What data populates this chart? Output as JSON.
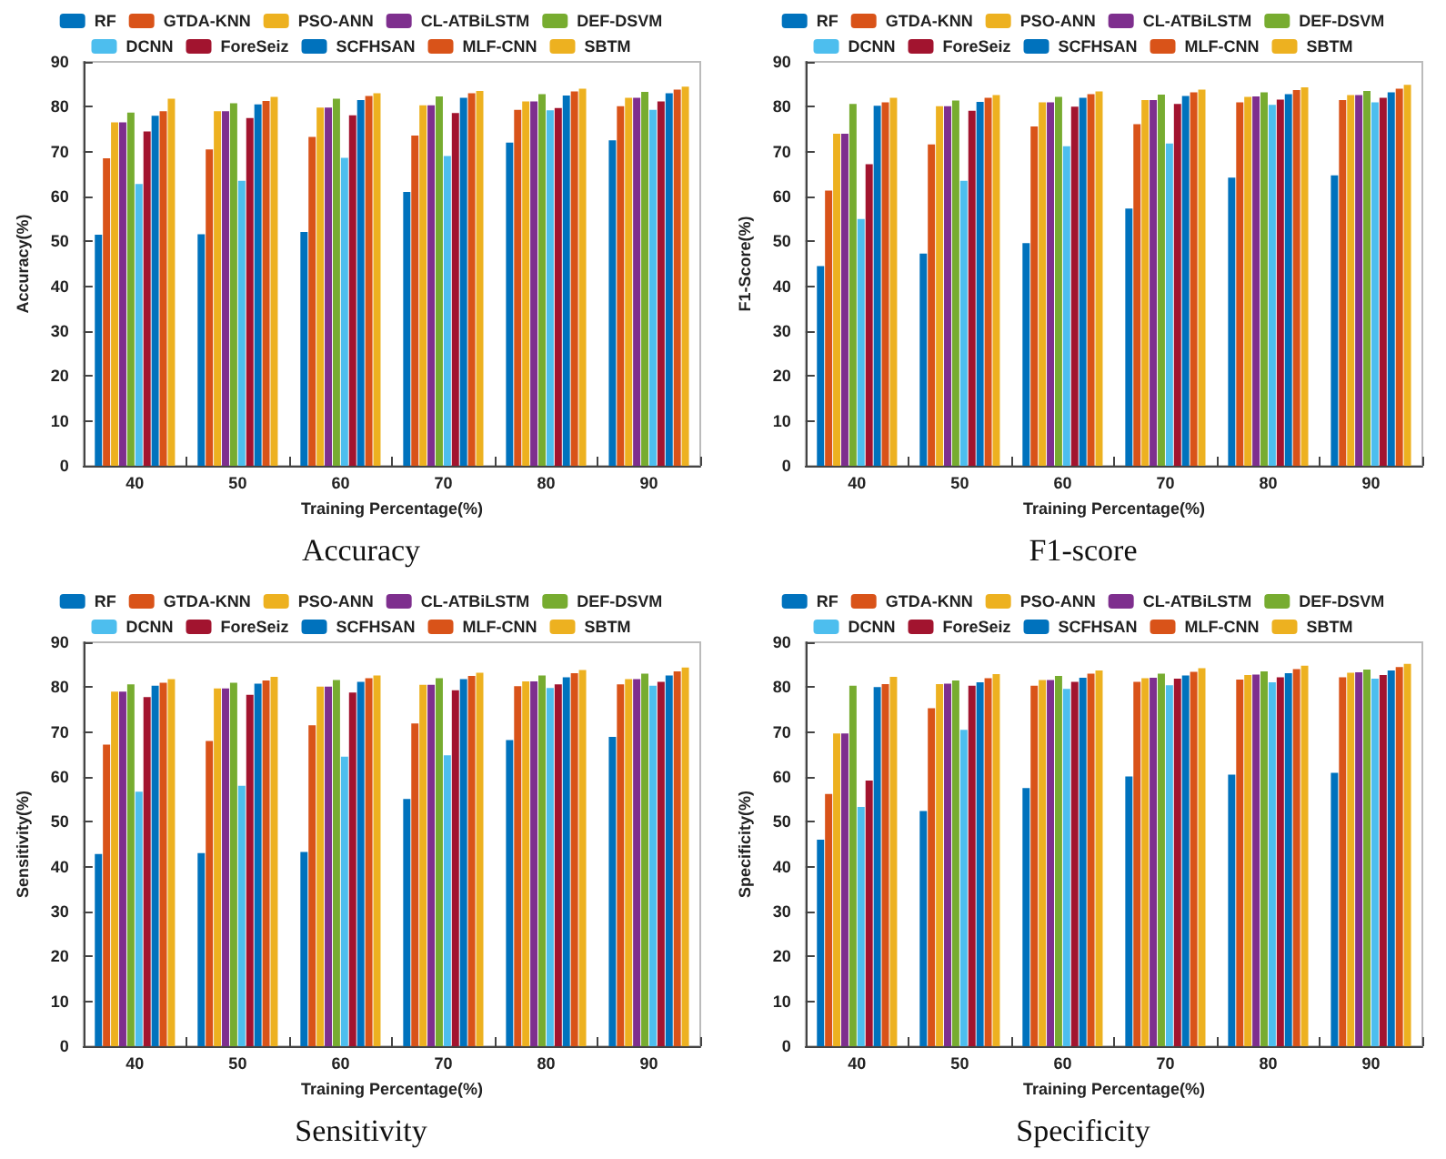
{
  "chart_data": [
    {
      "type": "bar",
      "title": "Accuracy",
      "xlabel": "Training Percentage(%)",
      "ylabel": "Accuracy(%)",
      "categories": [
        "40",
        "50",
        "60",
        "70",
        "80",
        "90"
      ],
      "ylim": [
        0,
        90
      ],
      "yticks": [
        0,
        10,
        20,
        30,
        40,
        50,
        60,
        70,
        80,
        90
      ],
      "legend": "top",
      "series": [
        {
          "name": "RF",
          "color": "#0072bd",
          "values": [
            51.5,
            51.6,
            52.1,
            61,
            72,
            72.5
          ]
        },
        {
          "name": "GTDA-KNN",
          "color": "#d95319",
          "values": [
            68.5,
            70.5,
            73.3,
            73.6,
            79.3,
            80.1
          ]
        },
        {
          "name": "PSO-ANN",
          "color": "#edb120",
          "values": [
            76.5,
            79,
            79.8,
            80.3,
            81.2,
            82
          ]
        },
        {
          "name": "CL-ATBiLSTM",
          "color": "#7e2f8e",
          "values": [
            76.5,
            79,
            79.8,
            80.3,
            81.2,
            82
          ]
        },
        {
          "name": "DEF-DSVM",
          "color": "#77ac30",
          "values": [
            78.7,
            80.8,
            81.8,
            82.3,
            82.8,
            83.3
          ]
        },
        {
          "name": "DCNN",
          "color": "#4dbeee",
          "values": [
            62.8,
            63.5,
            68.6,
            69,
            79.2,
            79.3
          ]
        },
        {
          "name": "ForeSeiz",
          "color": "#a2142f",
          "values": [
            74.5,
            77.5,
            78.1,
            78.6,
            79.7,
            81.2
          ]
        },
        {
          "name": "SCFHSAN",
          "color": "#0072bd",
          "values": [
            78,
            80.5,
            81.5,
            82,
            82.5,
            83
          ]
        },
        {
          "name": "MLF-CNN",
          "color": "#d95319",
          "values": [
            79,
            81.3,
            82.4,
            83,
            83.4,
            83.8
          ]
        },
        {
          "name": "SBTM",
          "color": "#edb120",
          "values": [
            81.8,
            82.2,
            83,
            83.5,
            84,
            84.5
          ]
        }
      ]
    },
    {
      "type": "bar",
      "title": "F1-score",
      "xlabel": "Training Percentage(%)",
      "ylabel": "F1-Score(%)",
      "categories": [
        "40",
        "50",
        "60",
        "70",
        "80",
        "90"
      ],
      "ylim": [
        0,
        90
      ],
      "yticks": [
        0,
        10,
        20,
        30,
        40,
        50,
        60,
        70,
        80,
        90
      ],
      "legend": "top",
      "series": [
        {
          "name": "RF",
          "color": "#0072bd",
          "values": [
            44.5,
            47.3,
            49.6,
            57.3,
            64.2,
            64.7
          ]
        },
        {
          "name": "GTDA-KNN",
          "color": "#d95319",
          "values": [
            61.3,
            71.6,
            75.6,
            76.1,
            81,
            81.5
          ]
        },
        {
          "name": "PSO-ANN",
          "color": "#edb120",
          "values": [
            74,
            80.1,
            81,
            81.5,
            82.2,
            82.6
          ]
        },
        {
          "name": "CL-ATBiLSTM",
          "color": "#7e2f8e",
          "values": [
            74,
            80.1,
            81,
            81.5,
            82.3,
            82.6
          ]
        },
        {
          "name": "DEF-DSVM",
          "color": "#77ac30",
          "values": [
            80.6,
            81.4,
            82.2,
            82.7,
            83.2,
            83.5
          ]
        },
        {
          "name": "DCNN",
          "color": "#4dbeee",
          "values": [
            55,
            63.5,
            71.2,
            71.8,
            80.4,
            81
          ]
        },
        {
          "name": "ForeSeiz",
          "color": "#a2142f",
          "values": [
            67.2,
            79.1,
            80,
            80.6,
            81.6,
            82
          ]
        },
        {
          "name": "SCFHSAN",
          "color": "#0072bd",
          "values": [
            80.2,
            81.1,
            82,
            82.4,
            82.8,
            83.2
          ]
        },
        {
          "name": "MLF-CNN",
          "color": "#d95319",
          "values": [
            81,
            82,
            82.8,
            83.2,
            83.7,
            84
          ]
        },
        {
          "name": "SBTM",
          "color": "#edb120",
          "values": [
            82,
            82.6,
            83.4,
            83.8,
            84.3,
            84.9
          ]
        }
      ]
    },
    {
      "type": "bar",
      "title": "Sensitivity",
      "xlabel": "Training Percentage(%)",
      "ylabel": "Sensitivity(%)",
      "categories": [
        "40",
        "50",
        "60",
        "70",
        "80",
        "90"
      ],
      "ylim": [
        0,
        90
      ],
      "yticks": [
        0,
        10,
        20,
        30,
        40,
        50,
        60,
        70,
        80,
        90
      ],
      "legend": "top",
      "series": [
        {
          "name": "RF",
          "color": "#0072bd",
          "values": [
            42.8,
            43,
            43.3,
            55.1,
            68.2,
            68.9
          ]
        },
        {
          "name": "GTDA-KNN",
          "color": "#d95319",
          "values": [
            67.2,
            68,
            71.5,
            71.9,
            80.2,
            80.6
          ]
        },
        {
          "name": "PSO-ANN",
          "color": "#edb120",
          "values": [
            79,
            79.7,
            80.1,
            80.5,
            81.3,
            81.8
          ]
        },
        {
          "name": "CL-ATBiLSTM",
          "color": "#7e2f8e",
          "values": [
            79,
            79.7,
            80.1,
            80.5,
            81.3,
            81.8
          ]
        },
        {
          "name": "DEF-DSVM",
          "color": "#77ac30",
          "values": [
            80.6,
            81,
            81.6,
            82,
            82.6,
            83
          ]
        },
        {
          "name": "DCNN",
          "color": "#4dbeee",
          "values": [
            56.7,
            58,
            64.5,
            64.8,
            79.8,
            80.3
          ]
        },
        {
          "name": "ForeSeiz",
          "color": "#a2142f",
          "values": [
            77.8,
            78.3,
            78.8,
            79.3,
            80.6,
            81.2
          ]
        },
        {
          "name": "SCFHSAN",
          "color": "#0072bd",
          "values": [
            80.3,
            80.8,
            81.2,
            81.8,
            82.2,
            82.6
          ]
        },
        {
          "name": "MLF-CNN",
          "color": "#d95319",
          "values": [
            81,
            81.5,
            82,
            82.5,
            83.1,
            83.5
          ]
        },
        {
          "name": "SBTM",
          "color": "#edb120",
          "values": [
            81.8,
            82.3,
            82.6,
            83.2,
            83.8,
            84.4
          ]
        }
      ]
    },
    {
      "type": "bar",
      "title": "Specificity",
      "xlabel": "Training Percentage(%)",
      "ylabel": "Specificity(%)",
      "categories": [
        "40",
        "50",
        "60",
        "70",
        "80",
        "90"
      ],
      "ylim": [
        0,
        90
      ],
      "yticks": [
        0,
        10,
        20,
        30,
        40,
        50,
        60,
        70,
        80,
        90
      ],
      "legend": "top",
      "series": [
        {
          "name": "RF",
          "color": "#0072bd",
          "values": [
            46,
            52.4,
            57.5,
            60.1,
            60.5,
            60.9
          ]
        },
        {
          "name": "GTDA-KNN",
          "color": "#d95319",
          "values": [
            56.2,
            75.3,
            80.3,
            81.2,
            81.7,
            82.2
          ]
        },
        {
          "name": "PSO-ANN",
          "color": "#edb120",
          "values": [
            69.7,
            80.7,
            81.6,
            82,
            82.7,
            83.2
          ]
        },
        {
          "name": "CL-ATBiLSTM",
          "color": "#7e2f8e",
          "values": [
            69.7,
            80.8,
            81.6,
            82.1,
            82.8,
            83.3
          ]
        },
        {
          "name": "DEF-DSVM",
          "color": "#77ac30",
          "values": [
            80.3,
            81.5,
            82.5,
            83,
            83.5,
            83.9
          ]
        },
        {
          "name": "DCNN",
          "color": "#4dbeee",
          "values": [
            53.3,
            70.5,
            79.6,
            80.4,
            81.1,
            81.9
          ]
        },
        {
          "name": "ForeSeiz",
          "color": "#a2142f",
          "values": [
            59.2,
            80.3,
            81.2,
            81.9,
            82.2,
            82.7
          ]
        },
        {
          "name": "SCFHSAN",
          "color": "#0072bd",
          "values": [
            80,
            81.1,
            82.1,
            82.6,
            83.1,
            83.7
          ]
        },
        {
          "name": "MLF-CNN",
          "color": "#d95319",
          "values": [
            80.7,
            82,
            83,
            83.4,
            84,
            84.5
          ]
        },
        {
          "name": "SBTM",
          "color": "#edb120",
          "values": [
            82.3,
            82.9,
            83.7,
            84.2,
            84.8,
            85.2
          ]
        }
      ]
    }
  ]
}
